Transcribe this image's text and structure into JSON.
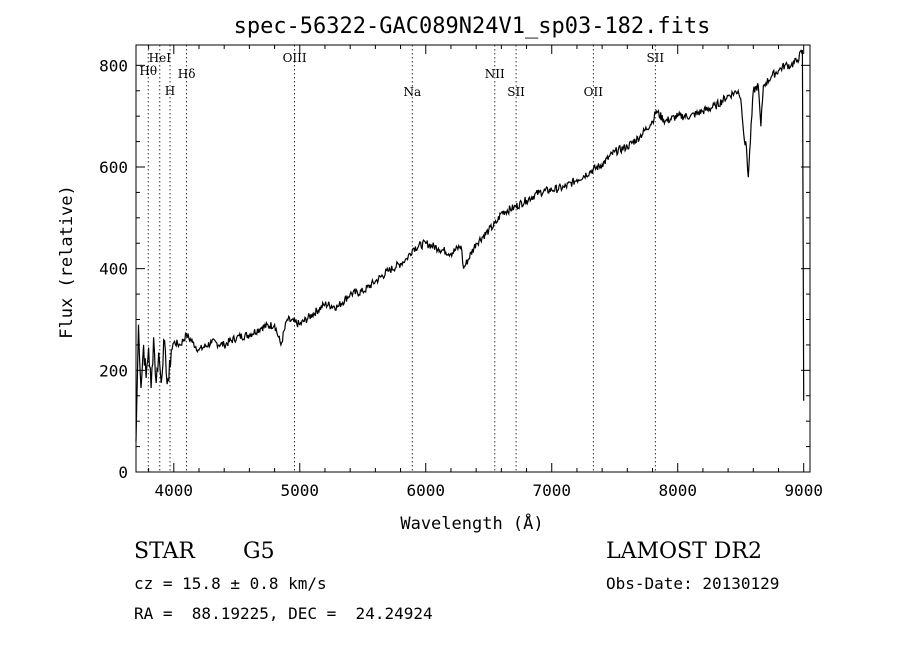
{
  "chart_data": {
    "type": "line",
    "title": "spec-56322-GAC089N24V1_sp03-182.fits",
    "xlabel": "Wavelength (Å)",
    "ylabel": "Flux (relative)",
    "xlim": [
      3700,
      9050
    ],
    "ylim": [
      0,
      840
    ],
    "xticks": [
      4000,
      5000,
      6000,
      7000,
      8000,
      9000
    ],
    "yticks": [
      0,
      200,
      400,
      600,
      800
    ],
    "xtick_labels": [
      "4000",
      "5000",
      "6000",
      "7000",
      "8000",
      "9000"
    ],
    "ytick_labels": [
      "0",
      "200",
      "400",
      "600",
      "800"
    ],
    "grid": false,
    "line_color": "#000000",
    "series": [
      {
        "x": [
          3700,
          3720,
          3740,
          3760,
          3780,
          3800,
          3820,
          3840,
          3860,
          3880,
          3900,
          3920,
          3940,
          3960,
          3980,
          4000,
          4050,
          4100,
          4150,
          4200,
          4300,
          4400,
          4500,
          4600,
          4700,
          4800,
          4850,
          4900,
          5000,
          5100,
          5200,
          5300,
          5400,
          5500,
          5600,
          5700,
          5800,
          5850,
          5900,
          6000,
          6100,
          6200,
          6280,
          6300,
          6400,
          6500,
          6560,
          6600,
          6700,
          6800,
          6900,
          7000,
          7100,
          7200,
          7300,
          7400,
          7500,
          7600,
          7700,
          7800,
          7830,
          7900,
          8000,
          8100,
          8200,
          8300,
          8400,
          8480,
          8500,
          8530,
          8545,
          8560,
          8600,
          8640,
          8660,
          8680,
          8700,
          8750,
          8800,
          8850,
          8900,
          8950,
          8990,
          9000
        ],
        "values": [
          60,
          290,
          165,
          250,
          185,
          245,
          165,
          265,
          175,
          235,
          175,
          260,
          195,
          180,
          240,
          255,
          250,
          270,
          255,
          240,
          255,
          250,
          265,
          270,
          285,
          290,
          250,
          300,
          290,
          310,
          330,
          325,
          350,
          355,
          375,
          395,
          410,
          420,
          440,
          450,
          440,
          430,
          445,
          400,
          450,
          475,
          490,
          510,
          520,
          535,
          550,
          555,
          560,
          575,
          590,
          605,
          630,
          640,
          660,
          690,
          710,
          690,
          700,
          700,
          710,
          720,
          740,
          750,
          735,
          650,
          640,
          580,
          750,
          760,
          680,
          760,
          765,
          780,
          790,
          800,
          800,
          810,
          830,
          140
        ]
      }
    ],
    "lines": [
      {
        "x": 3797,
        "label": "Hθ"
      },
      {
        "x": 3889,
        "label": "HeI"
      },
      {
        "x": 3970,
        "label": "H"
      },
      {
        "x": 4102,
        "label": "Hδ"
      },
      {
        "x": 4959,
        "label": "OIII"
      },
      {
        "x": 5893,
        "label": "Na"
      },
      {
        "x": 6548,
        "label": "NII"
      },
      {
        "x": 6717,
        "label": "SII"
      },
      {
        "x": 7330,
        "label": "OII"
      },
      {
        "x": 7822,
        "label": "SII"
      }
    ]
  },
  "info": {
    "class": "STAR",
    "subclass": "G5",
    "survey": "LAMOST DR2",
    "cz": "cz = 15.8 ± 0.8 km/s",
    "obs_date": "Obs-Date: 20130129",
    "coords": "RA =  88.19225, DEC =  24.24924"
  }
}
